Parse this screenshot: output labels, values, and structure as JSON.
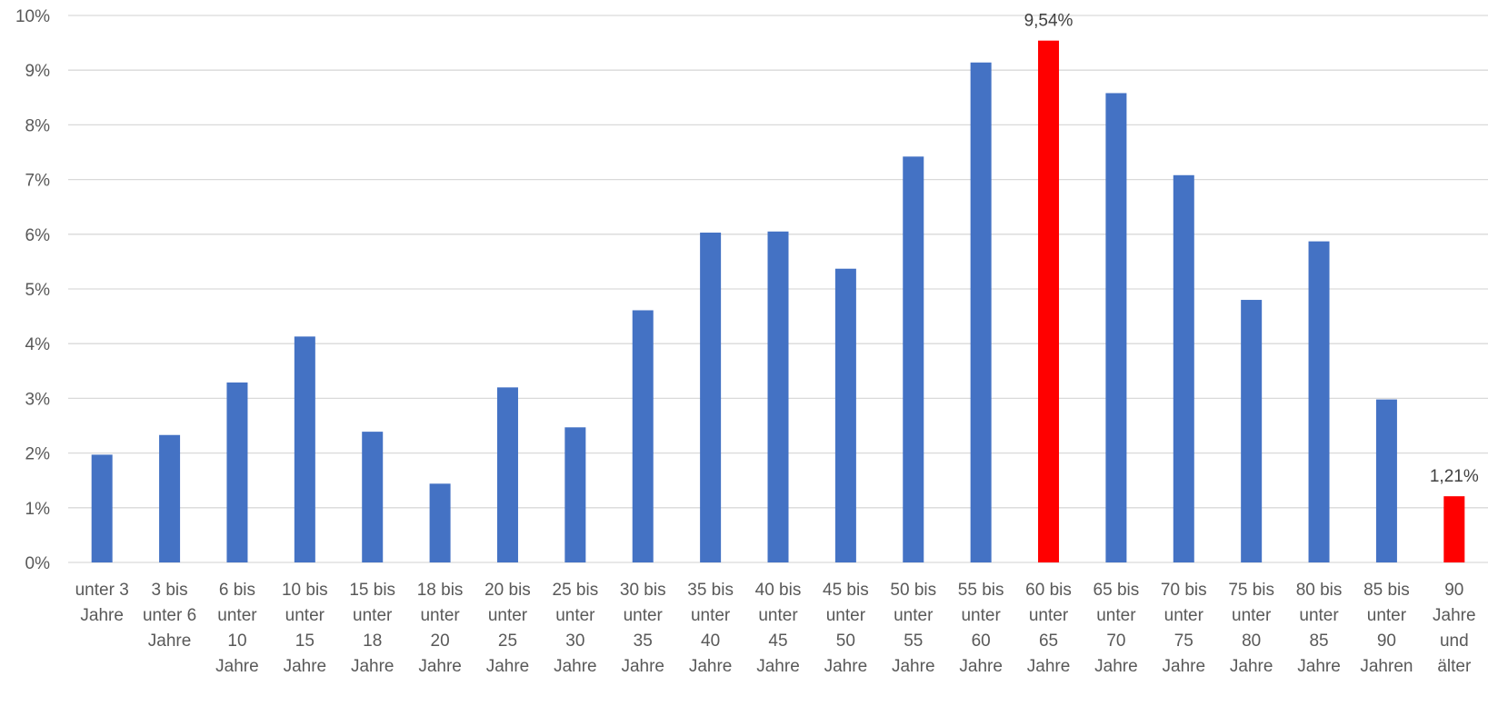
{
  "chart_data": {
    "type": "bar",
    "categories": [
      [
        "unter 3",
        "Jahre"
      ],
      [
        "3 bis",
        "unter 6",
        "Jahre"
      ],
      [
        "6 bis",
        "unter",
        "10",
        "Jahre"
      ],
      [
        "10 bis",
        "unter",
        "15",
        "Jahre"
      ],
      [
        "15 bis",
        "unter",
        "18",
        "Jahre"
      ],
      [
        "18 bis",
        "unter",
        "20",
        "Jahre"
      ],
      [
        "20 bis",
        "unter",
        "25",
        "Jahre"
      ],
      [
        "25 bis",
        "unter",
        "30",
        "Jahre"
      ],
      [
        "30 bis",
        "unter",
        "35",
        "Jahre"
      ],
      [
        "35 bis",
        "unter",
        "40",
        "Jahre"
      ],
      [
        "40 bis",
        "unter",
        "45",
        "Jahre"
      ],
      [
        "45 bis",
        "unter",
        "50",
        "Jahre"
      ],
      [
        "50 bis",
        "unter",
        "55",
        "Jahre"
      ],
      [
        "55 bis",
        "unter",
        "60",
        "Jahre"
      ],
      [
        "60 bis",
        "unter",
        "65",
        "Jahre"
      ],
      [
        "65 bis",
        "unter",
        "70",
        "Jahre"
      ],
      [
        "70 bis",
        "unter",
        "75",
        "Jahre"
      ],
      [
        "75 bis",
        "unter",
        "80",
        "Jahre"
      ],
      [
        "80 bis",
        "unter",
        "85",
        "Jahre"
      ],
      [
        "85 bis",
        "unter",
        "90",
        "Jahren"
      ],
      [
        "90",
        "Jahre",
        "und",
        "älter"
      ]
    ],
    "values": [
      1.97,
      2.33,
      3.29,
      4.13,
      2.39,
      1.44,
      3.2,
      2.47,
      4.61,
      6.03,
      6.05,
      5.37,
      7.42,
      9.14,
      9.54,
      8.58,
      7.08,
      4.8,
      5.87,
      2.98,
      1.21
    ],
    "highlight_indices": [
      14,
      20
    ],
    "data_labels": [
      {
        "index": 14,
        "text": "9,54%"
      },
      {
        "index": 20,
        "text": "1,21%"
      }
    ],
    "ylim": [
      0,
      10
    ],
    "yticks": [
      "0%",
      "1%",
      "2%",
      "3%",
      "4%",
      "5%",
      "6%",
      "7%",
      "8%",
      "9%",
      "10%"
    ],
    "colors": {
      "bar": "#4472C4",
      "highlight": "#FF0000",
      "grid": "#D9D9D9"
    },
    "grid": true,
    "legend": "none",
    "title": "",
    "xlabel": "",
    "ylabel": ""
  }
}
